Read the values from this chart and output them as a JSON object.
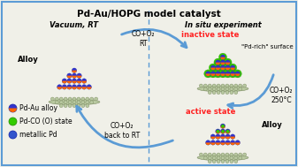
{
  "title": "Pd-Au/HOPG model catalyst",
  "bg_color": "#f0f0e8",
  "border_color": "#5b9bd5",
  "divider_color": "#5b9bd5",
  "arrow_color": "#5b9bd5",
  "left_label": "Vacuum, RT",
  "right_label": "In situ experiment",
  "alloy_label": "Alloy",
  "inactive_label": "inactive state",
  "inactive_color": "#ff2222",
  "active_label": "active state",
  "active_color": "#ff2222",
  "pd_rich_label": "\"Pd-rich\" surface",
  "alloy_label2": "Alloy",
  "co_rt_label": "CO+O₂\nRT",
  "co_250_label": "CO+O₂\n250°C",
  "co_back_label": "CO+O₂\nback to RT",
  "legend_items": [
    {
      "label": "Pd-Au alloy",
      "color1": "#ff6600",
      "color2": "#3333cc"
    },
    {
      "label": "Pd-CO (O) state",
      "color": "#33cc00"
    },
    {
      "label": "metallic Pd",
      "color": "#3355cc"
    }
  ],
  "hopg_color": "#b8c8a0",
  "alloy_dot_colors": [
    "#ff6600",
    "#3333cc"
  ],
  "pd_co_color": "#33cc00",
  "metallic_pd_color": "#3355cc"
}
